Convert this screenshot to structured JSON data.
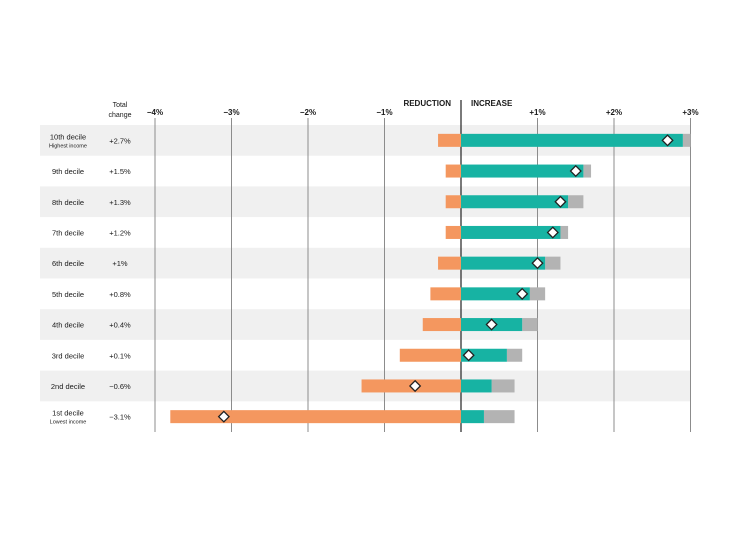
{
  "chart_data": {
    "type": "bar",
    "subtype": "diverging-stacked-bar-with-markers",
    "column_header": [
      "Total",
      "change"
    ],
    "direction_labels": {
      "negative": "REDUCTION",
      "positive": "INCREASE"
    },
    "x_tick_labels": [
      "−4%",
      "−3%",
      "−2%",
      "−1%",
      "+1%",
      "+2%",
      "+3%"
    ],
    "x_ticks": [
      -4,
      -3,
      -2,
      -1,
      1,
      2,
      3
    ],
    "xlim": [
      -4,
      3
    ],
    "grid": true,
    "colors": {
      "reduction": "#f4975f",
      "increase": "#17b3a3",
      "increase_extra": "#b3b3b3",
      "band": "#f0f0f0",
      "marker_fill": "#ffffff",
      "marker_stroke": "#222222"
    },
    "rows": [
      {
        "label": "10th decile",
        "sublabel": "Highest income",
        "total_label": "+2.7%",
        "reduction": -0.3,
        "increase": 2.9,
        "increase_total": 3.0,
        "net": 2.7
      },
      {
        "label": "9th decile",
        "sublabel": "",
        "total_label": "+1.5%",
        "reduction": -0.2,
        "increase": 1.6,
        "increase_total": 1.7,
        "net": 1.5
      },
      {
        "label": "8th decile",
        "sublabel": "",
        "total_label": "+1.3%",
        "reduction": -0.2,
        "increase": 1.4,
        "increase_total": 1.6,
        "net": 1.3
      },
      {
        "label": "7th decile",
        "sublabel": "",
        "total_label": "+1.2%",
        "reduction": -0.2,
        "increase": 1.3,
        "increase_total": 1.4,
        "net": 1.2
      },
      {
        "label": "6th decile",
        "sublabel": "",
        "total_label": "+1%",
        "reduction": -0.3,
        "increase": 1.1,
        "increase_total": 1.3,
        "net": 1.0
      },
      {
        "label": "5th decile",
        "sublabel": "",
        "total_label": "+0.8%",
        "reduction": -0.4,
        "increase": 0.9,
        "increase_total": 1.1,
        "net": 0.8
      },
      {
        "label": "4th decile",
        "sublabel": "",
        "total_label": "+0.4%",
        "reduction": -0.5,
        "increase": 0.8,
        "increase_total": 1.0,
        "net": 0.4
      },
      {
        "label": "3rd decile",
        "sublabel": "",
        "total_label": "+0.1%",
        "reduction": -0.8,
        "increase": 0.6,
        "increase_total": 0.8,
        "net": 0.1
      },
      {
        "label": "2nd decile",
        "sublabel": "",
        "total_label": "−0.6%",
        "reduction": -1.3,
        "increase": 0.4,
        "increase_total": 0.7,
        "net": -0.6
      },
      {
        "label": "1st decile",
        "sublabel": "Lowest income",
        "total_label": "−3.1%",
        "reduction": -3.8,
        "increase": 0.3,
        "increase_total": 0.7,
        "net": -3.1
      }
    ]
  }
}
